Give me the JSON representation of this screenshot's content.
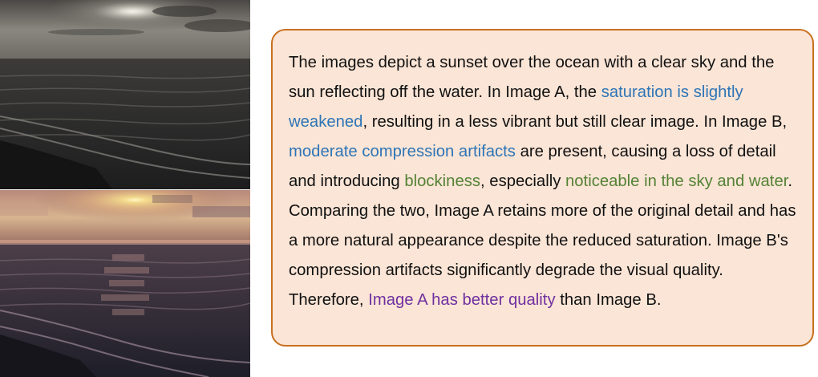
{
  "caption": {
    "segments": [
      {
        "text": "The images depict a sunset over the ocean with a clear sky and the sun reflecting off the water. In Image A, the ",
        "color": "default"
      },
      {
        "text": "saturation is slightly weakened",
        "color": "blue"
      },
      {
        "text": ", resulting in a less vibrant but still clear image. In Image B, ",
        "color": "default"
      },
      {
        "text": "moderate compression artifacts",
        "color": "blue"
      },
      {
        "text": " are present, causing a loss of detail and introducing ",
        "color": "default"
      },
      {
        "text": "blockiness",
        "color": "green"
      },
      {
        "text": ", especially ",
        "color": "default"
      },
      {
        "text": "noticeable in the sky and water",
        "color": "green"
      },
      {
        "text": ". Comparing the two, Image A retains more of the original detail and has a more natural appearance despite the reduced saturation. Image B's compression artifacts significantly degrade the visual quality. Therefore, ",
        "color": "default"
      },
      {
        "text": "Image A has better quality",
        "color": "purple"
      },
      {
        "text": " than Image B.",
        "color": "default"
      }
    ]
  },
  "colors": {
    "box_border": "#c8701f",
    "box_background": "#fbe5d6",
    "blue": "#2e75b6",
    "green": "#548235",
    "purple": "#7030a0"
  }
}
